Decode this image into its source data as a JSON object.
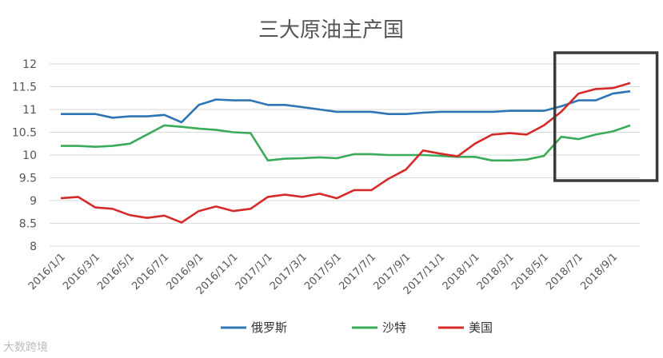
{
  "chart_data": {
    "type": "line",
    "title": "三大原油主产国",
    "y_ticks": [
      "8",
      "8.5",
      "9",
      "9.5",
      "10",
      "10.5",
      "11",
      "11.5",
      "12"
    ],
    "ylim": [
      8,
      12
    ],
    "x_ticks": [
      "2016/1/1",
      "2016/3/1",
      "2016/5/1",
      "2016/7/1",
      "2016/9/1",
      "2016/11/1",
      "2017/1/1",
      "2017/3/1",
      "2017/5/1",
      "2017/7/1",
      "2017/9/1",
      "2017/11/1",
      "2018/1/1",
      "2018/3/1",
      "2018/5/1",
      "2018/7/1",
      "2018/9/1"
    ],
    "grid": true,
    "legend_position": "bottom",
    "highlight": {
      "from_index": 29,
      "to_index": 34,
      "note": "boxed region"
    },
    "series": [
      {
        "name": "俄罗斯",
        "color": "#2e75b6",
        "values": [
          10.9,
          10.9,
          10.9,
          10.82,
          10.85,
          10.85,
          10.88,
          10.72,
          11.1,
          11.22,
          11.2,
          11.2,
          11.1,
          11.1,
          11.05,
          11.0,
          10.95,
          10.95,
          10.95,
          10.9,
          10.9,
          10.93,
          10.95,
          10.95,
          10.95,
          10.95,
          10.97,
          10.97,
          10.97,
          11.07,
          11.2,
          11.2,
          11.35,
          11.4
        ]
      },
      {
        "name": "沙特",
        "color": "#3aab59",
        "values": [
          10.2,
          10.2,
          10.18,
          10.2,
          10.25,
          10.45,
          10.65,
          10.62,
          10.58,
          10.55,
          10.5,
          10.48,
          9.88,
          9.92,
          9.93,
          9.95,
          9.93,
          10.02,
          10.02,
          10.0,
          10.0,
          10.0,
          9.98,
          9.96,
          9.96,
          9.88,
          9.88,
          9.9,
          9.98,
          10.4,
          10.35,
          10.45,
          10.52,
          10.65
        ]
      },
      {
        "name": "美国",
        "color": "#d42a2a",
        "values": [
          9.05,
          9.08,
          8.85,
          8.82,
          8.68,
          8.62,
          8.67,
          8.52,
          8.77,
          8.87,
          8.77,
          8.82,
          9.08,
          9.13,
          9.08,
          9.15,
          9.05,
          9.23,
          9.23,
          9.48,
          9.68,
          10.1,
          10.03,
          9.97,
          10.25,
          10.45,
          10.48,
          10.45,
          10.65,
          10.95,
          11.35,
          11.45,
          11.47,
          11.58
        ]
      }
    ]
  },
  "watermark": "大数跨境"
}
